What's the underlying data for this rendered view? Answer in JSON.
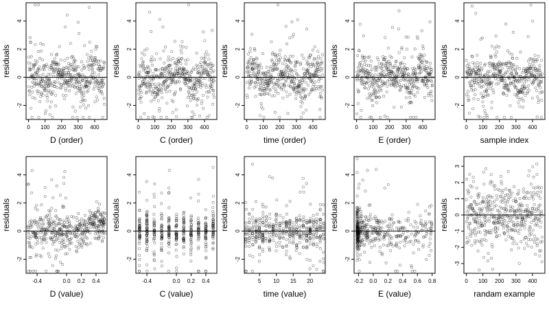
{
  "figure": {
    "rows": 2,
    "cols": 5,
    "point_color": "#000000",
    "point_opacity": 0.55
  },
  "chart_data": [
    {
      "type": "scatter",
      "xlabel": "D (order)",
      "ylabel": "residuals",
      "xlim": [
        -15,
        475
      ],
      "xticks": [
        0,
        100,
        200,
        300,
        400
      ],
      "xticklabels": [
        "0",
        "100",
        "200",
        "300",
        "400"
      ],
      "ylim": [
        -3,
        5.3
      ],
      "yticks": [
        -2,
        0,
        2,
        4
      ],
      "yticklabels": [
        "-2",
        "0",
        "2",
        "4"
      ],
      "hline": 0,
      "n_points": 460,
      "pattern": "order",
      "seed": 11
    },
    {
      "type": "scatter",
      "xlabel": "C (order)",
      "ylabel": "residuals",
      "xlim": [
        -15,
        475
      ],
      "xticks": [
        0,
        100,
        200,
        300,
        400
      ],
      "xticklabels": [
        "0",
        "100",
        "200",
        "300",
        "400"
      ],
      "ylim": [
        -3,
        5.3
      ],
      "yticks": [
        -2,
        0,
        2,
        4
      ],
      "yticklabels": [
        "-2",
        "0",
        "2",
        "4"
      ],
      "hline": 0,
      "n_points": 460,
      "pattern": "order",
      "seed": 23
    },
    {
      "type": "scatter",
      "xlabel": "time (order)",
      "ylabel": "residuals",
      "xlim": [
        -15,
        475
      ],
      "xticks": [
        0,
        100,
        200,
        300,
        400
      ],
      "xticklabels": [
        "0",
        "100",
        "200",
        "300",
        "400"
      ],
      "ylim": [
        -3,
        5.3
      ],
      "yticks": [
        -2,
        0,
        2,
        4
      ],
      "yticklabels": [
        "-2",
        "0",
        "2",
        "4"
      ],
      "hline": 0,
      "n_points": 460,
      "pattern": "order",
      "seed": 37
    },
    {
      "type": "scatter",
      "xlabel": "E (order)",
      "ylabel": "residuals",
      "xlim": [
        -15,
        475
      ],
      "xticks": [
        0,
        100,
        200,
        300,
        400
      ],
      "xticklabels": [
        "0",
        "100",
        "200",
        "300",
        "400"
      ],
      "ylim": [
        -3,
        5.3
      ],
      "yticks": [
        -2,
        0,
        2,
        4
      ],
      "yticklabels": [
        "-2",
        "0",
        "2",
        "4"
      ],
      "hline": 0,
      "n_points": 460,
      "pattern": "order",
      "seed": 41
    },
    {
      "type": "scatter",
      "xlabel": "sample index",
      "ylabel": "residuals",
      "xlim": [
        -15,
        475
      ],
      "xticks": [
        0,
        100,
        200,
        300,
        400
      ],
      "xticklabels": [
        "0",
        "100",
        "200",
        "300",
        "400"
      ],
      "ylim": [
        -3,
        5.3
      ],
      "yticks": [
        -2,
        0,
        2,
        4
      ],
      "yticklabels": [
        "-2",
        "0",
        "2",
        "4"
      ],
      "hline": 0,
      "n_points": 460,
      "pattern": "order",
      "seed": 53
    },
    {
      "type": "scatter",
      "xlabel": "D (value)",
      "ylabel": "residuals",
      "xlim": [
        -0.55,
        0.55
      ],
      "xticks": [
        -0.4,
        0.0,
        0.2,
        0.4
      ],
      "xticklabels": [
        "-0.4",
        "0.0",
        "0.2",
        "0.4"
      ],
      "ylim": [
        -3,
        5.3
      ],
      "yticks": [
        -2,
        0,
        2,
        4
      ],
      "yticklabels": [
        "-2",
        "0",
        "2",
        "4"
      ],
      "hline": 0,
      "n_points": 460,
      "pattern": "value_spread",
      "seed": 61
    },
    {
      "type": "scatter",
      "xlabel": "C (value)",
      "ylabel": "residuals",
      "xlim": [
        -0.55,
        0.55
      ],
      "xticks": [
        -0.4,
        0.0,
        0.2,
        0.4
      ],
      "xticklabels": [
        "-0.4",
        "0.0",
        "0.2",
        "0.4"
      ],
      "ylim": [
        -3,
        5.3
      ],
      "yticks": [
        -2,
        0,
        2,
        4
      ],
      "yticklabels": [
        "-2",
        "0",
        "2",
        "4"
      ],
      "hline": 0,
      "n_points": 460,
      "pattern": "value_columns",
      "column_values": [
        -0.5,
        -0.4,
        -0.3,
        -0.2,
        -0.1,
        0.0,
        0.1,
        0.2,
        0.3,
        0.4,
        0.5
      ],
      "seed": 71
    },
    {
      "type": "scatter",
      "xlabel": "time (value)",
      "ylabel": "residuals",
      "xlim": [
        0.5,
        24.5
      ],
      "xticks": [
        5,
        10,
        15,
        20
      ],
      "xticklabels": [
        "5",
        "10",
        "15",
        "20"
      ],
      "ylim": [
        -3,
        5.3
      ],
      "yticks": [
        -2,
        0,
        2,
        4
      ],
      "yticklabels": [
        "-2",
        "0",
        "2",
        "4"
      ],
      "hline": 0,
      "n_points": 460,
      "pattern": "value_columns",
      "column_values": [
        1,
        2,
        3,
        4,
        5,
        6,
        7,
        8,
        9,
        10,
        11,
        12,
        13,
        14,
        15,
        16,
        17,
        18,
        19,
        20,
        21,
        22,
        23,
        24
      ],
      "seed": 83
    },
    {
      "type": "scatter",
      "xlabel": "E (value)",
      "ylabel": "residuals",
      "xlim": [
        -0.26,
        0.84
      ],
      "xticks": [
        -0.2,
        0.0,
        0.2,
        0.4,
        0.6,
        0.8
      ],
      "xticklabels": [
        "-0.2",
        "0.0",
        "0.2",
        "0.4",
        "0.6",
        "0.8"
      ],
      "ylim": [
        -3,
        5.3
      ],
      "yticks": [
        -2,
        0,
        2,
        4
      ],
      "yticklabels": [
        "-2",
        "0",
        "2",
        "4"
      ],
      "hline": 0,
      "n_points": 460,
      "pattern": "value_skewed",
      "seed": 97
    },
    {
      "type": "scatter",
      "xlabel": "randam example",
      "ylabel": "residuals",
      "xlim": [
        -15,
        475
      ],
      "xticks": [
        0,
        100,
        200,
        300,
        400
      ],
      "xticklabels": [
        "0",
        "100",
        "200",
        "300",
        "400"
      ],
      "ylim": [
        -3.6,
        3.6
      ],
      "yticks": [
        -3,
        -2,
        -1,
        0,
        1,
        2,
        3
      ],
      "yticklabels": [
        "-3",
        "-2",
        "-1",
        "0",
        "1",
        "2",
        "3"
      ],
      "hline": 0,
      "n_points": 460,
      "pattern": "random",
      "seed": 109
    }
  ]
}
